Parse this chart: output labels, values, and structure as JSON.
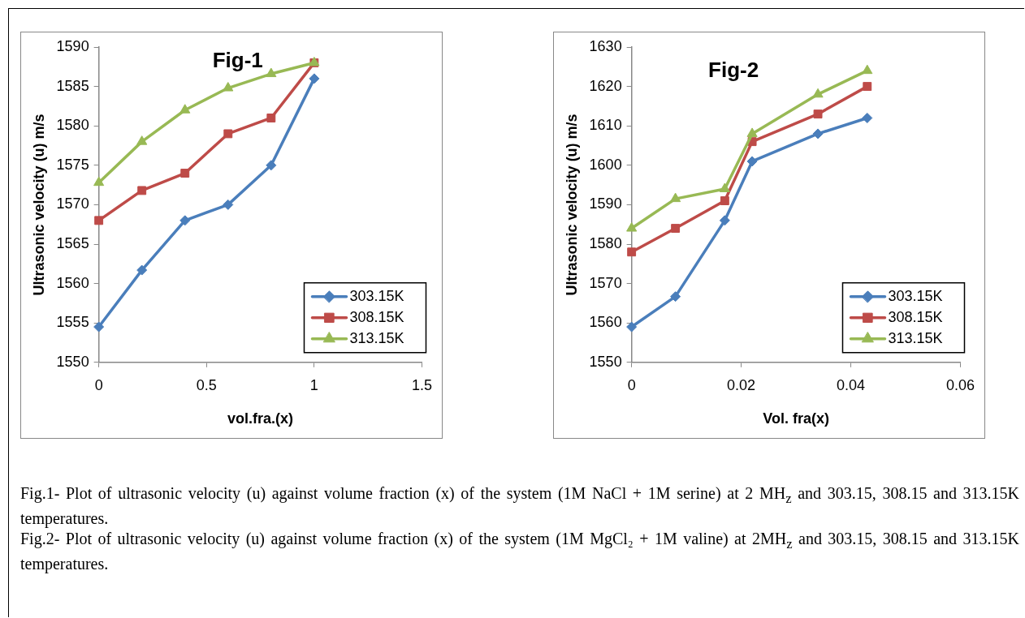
{
  "chart_data": [
    {
      "type": "line",
      "title": "Fig-1",
      "xlabel": "vol.fra.(x)",
      "ylabel": "Ultrasonic velocity (u) m/s",
      "x": [
        0,
        0.2,
        0.4,
        0.6,
        0.8,
        1
      ],
      "xlim": [
        0,
        1.5
      ],
      "xticks": [
        0,
        0.5,
        1,
        1.5
      ],
      "ylim": [
        1550,
        1590
      ],
      "yticks": [
        1550,
        1555,
        1560,
        1565,
        1570,
        1575,
        1580,
        1585,
        1590
      ],
      "grid": false,
      "legend": "bottom right",
      "line_style": "solid",
      "series": [
        {
          "name": "303.15K",
          "color": "#4a7ebb",
          "marker": "diamond",
          "values": [
            1554.5,
            1561.7,
            1568,
            1570,
            1575,
            1586
          ]
        },
        {
          "name": "308.15K",
          "color": "#be4b48",
          "marker": "square",
          "values": [
            1568,
            1571.8,
            1574,
            1579,
            1581,
            1588
          ]
        },
        {
          "name": "313.15K",
          "color": "#98b954",
          "marker": "triangle",
          "values": [
            1572.8,
            1578,
            1582,
            1584.8,
            1586.6,
            1588
          ]
        }
      ],
      "annotations": [
        "Fig.1- Plot of ultrasonic velocity (u) against volume fraction (x) of the system (1M NaCl + 1M serine) at 2 MH$_{z}$ and 303.15, 308.15 and 313.15K temperatures."
      ]
    },
    {
      "type": "line",
      "title": "Fig-2",
      "xlabel": "Vol. fra(x)",
      "ylabel": "Ultrasonic velocity (u) m/s",
      "x": [
        0,
        0.008,
        0.017,
        0.022,
        0.034,
        0.043
      ],
      "xlim": [
        0,
        0.06
      ],
      "xticks": [
        0,
        0.02,
        0.04,
        0.06
      ],
      "ylim": [
        1550,
        1630
      ],
      "yticks": [
        1550,
        1560,
        1570,
        1580,
        1590,
        1600,
        1610,
        1620,
        1630
      ],
      "grid": false,
      "legend": "bottom right",
      "line_style": "solid",
      "series": [
        {
          "name": "303.15K",
          "color": "#4a7ebb",
          "marker": "diamond",
          "values": [
            1559,
            1566.7,
            1586,
            1601,
            1608,
            1612
          ]
        },
        {
          "name": "308.15K",
          "color": "#be4b48",
          "marker": "square",
          "values": [
            1578,
            1584,
            1591,
            1606,
            1613,
            1620
          ]
        },
        {
          "name": "313.15K",
          "color": "#98b954",
          "marker": "triangle",
          "values": [
            1584,
            1591.5,
            1594,
            1608,
            1618,
            1624
          ]
        }
      ],
      "annotations": [
        "Fig.2- Plot of ultrasonic velocity (u) against volume fraction (x) of the system (1M MgCl₂ + 1M valine) at 2MH$_{z}$ and 303.15, 308.15 and 313.15K temperatures."
      ]
    }
  ]
}
